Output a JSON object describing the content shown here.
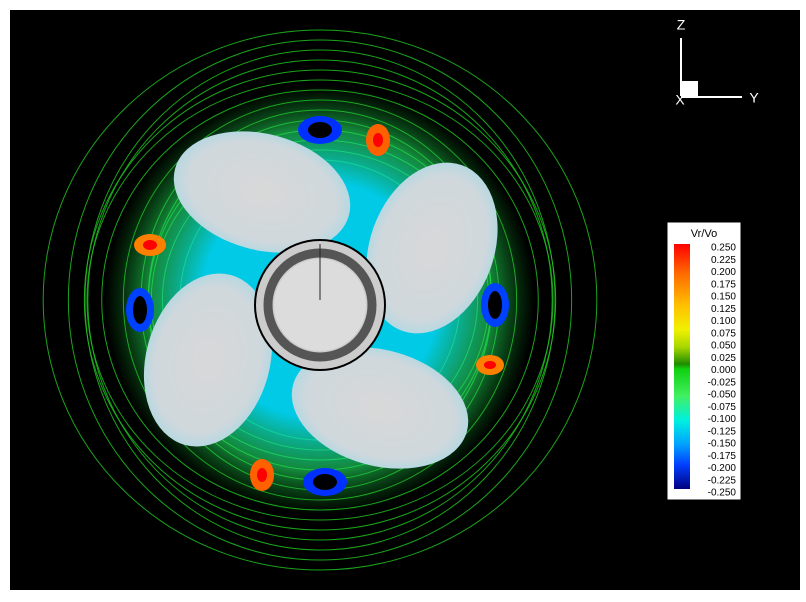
{
  "axes_triad": {
    "z": "Z",
    "y": "Y",
    "x": "X"
  },
  "legend": {
    "title": "Vr/Vo",
    "labels": [
      "0.250",
      "0.225",
      "0.200",
      "0.175",
      "0.150",
      "0.125",
      "0.100",
      "0.075",
      "0.050",
      "0.025",
      "0.000",
      "-0.025",
      "-0.050",
      "-0.075",
      "-0.100",
      "-0.125",
      "-0.150",
      "-0.175",
      "-0.200",
      "-0.225",
      "-0.250"
    ]
  }
}
